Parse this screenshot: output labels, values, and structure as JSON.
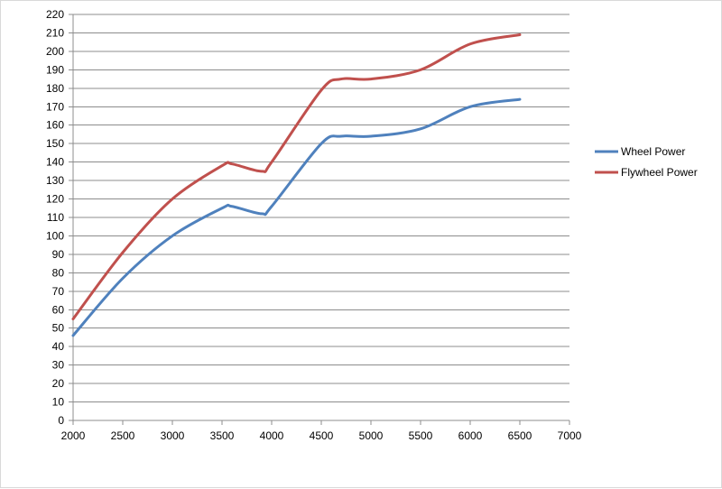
{
  "chart_data": {
    "type": "line",
    "x": [
      2000,
      2500,
      3000,
      3500,
      3600,
      3900,
      4000,
      4500,
      4700,
      5000,
      5500,
      6000,
      6500
    ],
    "xlim": [
      2000,
      7000
    ],
    "ylim": [
      0,
      220
    ],
    "xticks": [
      2000,
      2500,
      3000,
      3500,
      4000,
      4500,
      5000,
      5500,
      6000,
      6500,
      7000
    ],
    "yticks": [
      0,
      10,
      20,
      30,
      40,
      50,
      60,
      70,
      80,
      90,
      100,
      110,
      120,
      130,
      140,
      150,
      160,
      170,
      180,
      190,
      200,
      210,
      220
    ],
    "grid": true,
    "legend_position": "right",
    "series": [
      {
        "name": "Wheel Power",
        "color": "#4f81bd",
        "values": [
          46,
          77,
          100,
          115,
          116,
          112,
          116,
          150,
          154,
          154,
          158,
          170,
          174
        ]
      },
      {
        "name": "Flywheel Power",
        "color": "#c0504d",
        "values": [
          55,
          91,
          120,
          138,
          139,
          135,
          140,
          179,
          185,
          185,
          190,
          204,
          209
        ]
      }
    ]
  }
}
